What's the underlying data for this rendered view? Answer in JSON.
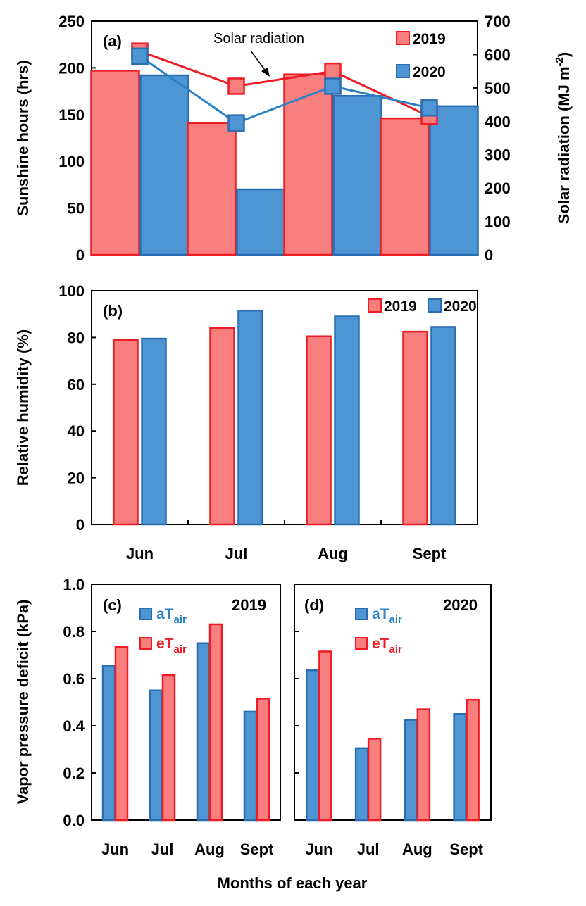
{
  "colors": {
    "c2019": "#f97f7f",
    "s2019": "#ee1c25",
    "c2020": "#4d95d3",
    "s2020": "#2a6db3",
    "line2019": "#ee1c25",
    "line2020": "#2d82c6"
  },
  "chart_data": [
    {
      "id": "a",
      "panel_label": "(a)",
      "type": "bar",
      "categories": [
        "Jun",
        "Jul",
        "Aug",
        "Sept"
      ],
      "ylabel": "Sunshine hours (hrs)",
      "ylim": [
        0,
        250
      ],
      "yticks": [
        0,
        50,
        100,
        150,
        200,
        250
      ],
      "series": [
        {
          "name": "2019",
          "values": [
            197,
            141,
            193,
            146
          ]
        },
        {
          "name": "2020",
          "values": [
            192,
            70,
            170,
            159
          ]
        }
      ],
      "secondary": {
        "type": "line",
        "ylabel": "Solar radiation (MJ m",
        "ylabel_sup": "-2",
        "ylabel_end": ")",
        "ylim": [
          0,
          700
        ],
        "yticks": [
          0,
          100,
          200,
          300,
          400,
          500,
          600,
          700
        ],
        "series": [
          {
            "name": "2019",
            "values": [
              610,
              505,
              550,
              415
            ]
          },
          {
            "name": "2020",
            "values": [
              595,
              395,
              505,
              440
            ]
          }
        ]
      },
      "annotation": "Solar radiation",
      "legend": [
        "2019",
        "2020"
      ]
    },
    {
      "id": "b",
      "panel_label": "(b)",
      "type": "bar",
      "categories": [
        "Jun",
        "Jul",
        "Aug",
        "Sept"
      ],
      "ylabel": "Relative humidity (%)",
      "ylim": [
        0,
        100
      ],
      "yticks": [
        0,
        20,
        40,
        60,
        80,
        100
      ],
      "series": [
        {
          "name": "2019",
          "values": [
            79,
            84,
            80.5,
            82.5
          ]
        },
        {
          "name": "2020",
          "values": [
            79.5,
            91.5,
            89,
            84.5
          ]
        }
      ],
      "legend": [
        "2019",
        "2020"
      ]
    },
    {
      "id": "c",
      "panel_label": "(c)",
      "title": "2019",
      "type": "bar",
      "categories": [
        "Jun",
        "Jul",
        "Aug",
        "Sept"
      ],
      "ylabel": "Vapor pressure deficit (kPa)",
      "ylim": [
        0,
        1.0
      ],
      "yticks": [
        "0.0",
        "0.2",
        "0.4",
        "0.6",
        "0.8",
        "1.0"
      ],
      "series": [
        {
          "name": "aT",
          "name_sub": "air",
          "values": [
            0.655,
            0.55,
            0.75,
            0.46
          ]
        },
        {
          "name": "eT",
          "name_sub": "air",
          "values": [
            0.735,
            0.615,
            0.83,
            0.515
          ]
        }
      ]
    },
    {
      "id": "d",
      "panel_label": "(d)",
      "title": "2020",
      "type": "bar",
      "categories": [
        "Jun",
        "Jul",
        "Aug",
        "Sept"
      ],
      "ylim": [
        0,
        1.0
      ],
      "series": [
        {
          "name": "aT",
          "name_sub": "air",
          "values": [
            0.635,
            0.305,
            0.425,
            0.45
          ]
        },
        {
          "name": "eT",
          "name_sub": "air",
          "values": [
            0.715,
            0.345,
            0.47,
            0.51
          ]
        }
      ]
    }
  ],
  "shared_xlabel": "Months of each year"
}
